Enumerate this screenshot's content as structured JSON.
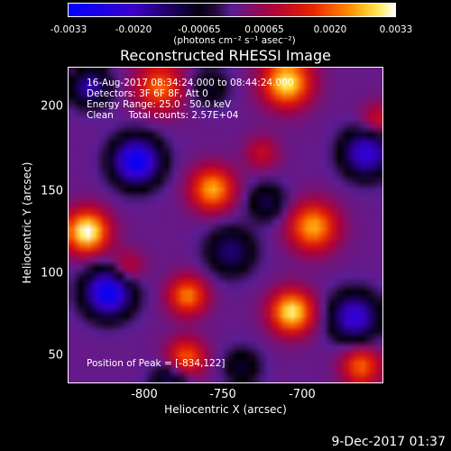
{
  "colorbar": {
    "ticks": [
      "-0.0033",
      "-0.0020",
      "-0.00065",
      "0.00065",
      "0.0020",
      "0.0033"
    ],
    "range": [
      -0.0033,
      0.0033
    ],
    "units": "(photons cm⁻² s⁻¹ asec⁻²)"
  },
  "title": "Reconstructed RHESSI Image",
  "annotations": {
    "time": "16-Aug-2017 08:34:24.000 to 08:44:24.000",
    "detectors": "Detectors: 3F 6F 8F, Att 0",
    "energy": "Energy Range: 25.0 - 50.0 keV",
    "clean": "Clean     Total counts: 2.57E+04",
    "peak": "Position of Peak = [-834,122]"
  },
  "axes": {
    "xlabel": "Heliocentric X (arcsec)",
    "ylabel": "Heliocentric Y (arcsec)",
    "xticks": [
      "-800",
      "-750",
      "-700"
    ],
    "yticks": [
      "200",
      "150",
      "100",
      "50"
    ]
  },
  "footer": "9-Dec-2017 01:37",
  "chart_data": {
    "type": "heatmap",
    "xlim": [
      -845,
      -655
    ],
    "ylim": [
      30,
      222
    ],
    "blobs": [
      {
        "x": -834,
        "y": 122,
        "v": 0.0033,
        "s": 9
      },
      {
        "x": -790,
        "y": 210,
        "v": 0.002,
        "s": 10
      },
      {
        "x": -758,
        "y": 148,
        "v": 0.0025,
        "s": 9
      },
      {
        "x": -773,
        "y": 83,
        "v": 0.0022,
        "s": 8
      },
      {
        "x": -774,
        "y": 45,
        "v": 0.002,
        "s": 8
      },
      {
        "x": -713,
        "y": 213,
        "v": 0.003,
        "s": 10
      },
      {
        "x": -728,
        "y": 170,
        "v": 0.001,
        "s": 7
      },
      {
        "x": -697,
        "y": 125,
        "v": 0.0025,
        "s": 10
      },
      {
        "x": -710,
        "y": 73,
        "v": 0.003,
        "s": 9
      },
      {
        "x": -668,
        "y": 40,
        "v": 0.002,
        "s": 8
      },
      {
        "x": -658,
        "y": 190,
        "v": 0.0012,
        "s": 7
      },
      {
        "x": -810,
        "y": 100,
        "v": 0.0012,
        "s": 7
      },
      {
        "x": -804,
        "y": 165,
        "v": -0.0033,
        "s": 10
      },
      {
        "x": -821,
        "y": 85,
        "v": -0.0033,
        "s": 10
      },
      {
        "x": -832,
        "y": 210,
        "v": -0.002,
        "s": 8
      },
      {
        "x": -747,
        "y": 110,
        "v": -0.0015,
        "s": 10
      },
      {
        "x": -725,
        "y": 140,
        "v": -0.0012,
        "s": 8
      },
      {
        "x": -665,
        "y": 170,
        "v": -0.0025,
        "s": 10
      },
      {
        "x": -672,
        "y": 70,
        "v": -0.0025,
        "s": 10
      },
      {
        "x": -740,
        "y": 40,
        "v": -0.001,
        "s": 8
      },
      {
        "x": -783,
        "y": 30,
        "v": -0.0015,
        "s": 8
      },
      {
        "x": -760,
        "y": 210,
        "v": -0.001,
        "s": 8
      }
    ]
  }
}
